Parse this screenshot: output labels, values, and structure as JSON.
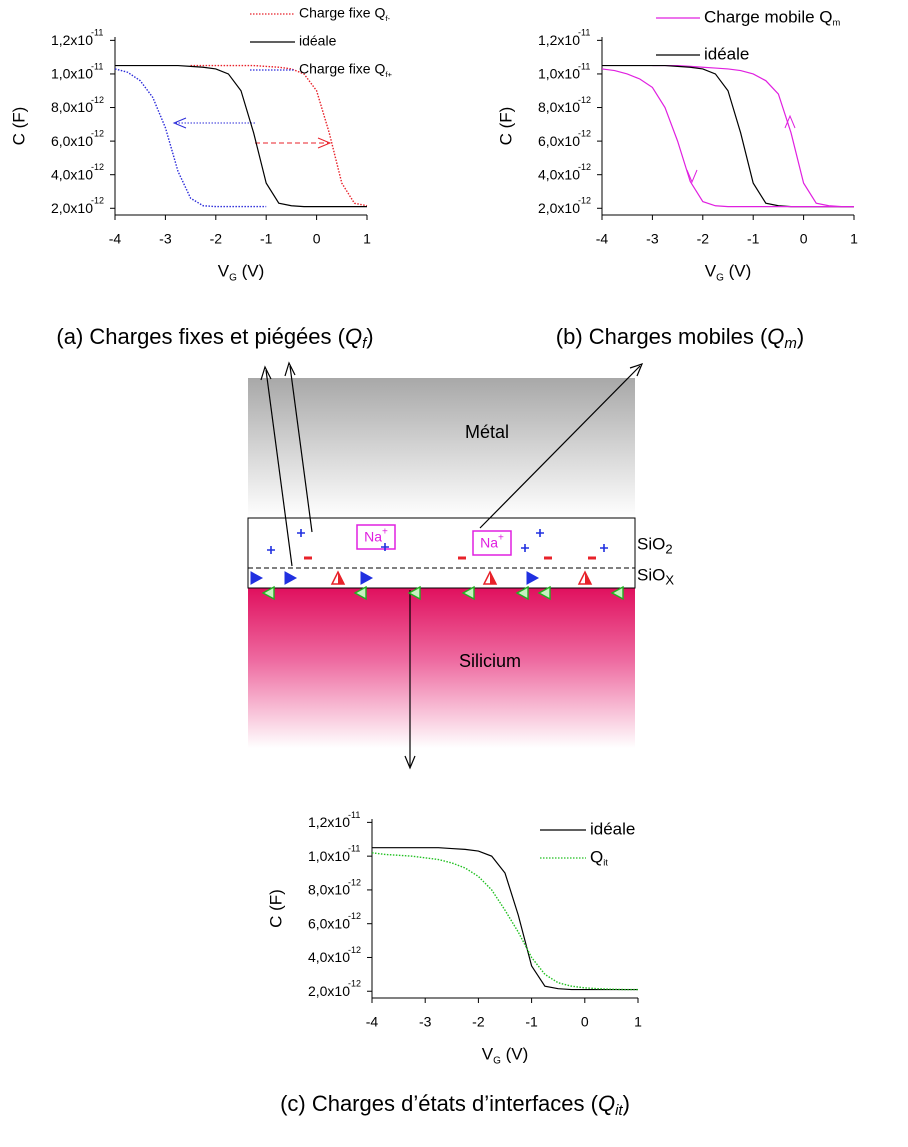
{
  "chart_data": [
    {
      "type": "line",
      "x": [
        -4,
        -3.75,
        -3.5,
        -3.25,
        -3,
        -2.75,
        -2.5,
        -2.25,
        -2,
        -1.75,
        -1.5,
        -1.25,
        -1,
        -0.75,
        -0.5,
        -0.25,
        0,
        0.25,
        0.5,
        0.75,
        1
      ],
      "xlim": [
        -4,
        1
      ],
      "xticks": [
        -4,
        -3,
        -2,
        -1,
        0,
        1
      ],
      "ylim": [
        1.6e-12,
        1.22e-11
      ],
      "yticks": [
        {
          "value": 2e-12,
          "label": "2,0x10",
          "exponent": "-12"
        },
        {
          "value": 4e-12,
          "label": "4,0x10",
          "exponent": "-12"
        },
        {
          "value": 6e-12,
          "label": "6,0x10",
          "exponent": "-12"
        },
        {
          "value": 8e-12,
          "label": "8,0x10",
          "exponent": "-12"
        },
        {
          "value": 1e-11,
          "label": "1,0x10",
          "exponent": "-11"
        },
        {
          "value": 1.2e-11,
          "label": "1,2x10",
          "exponent": "-11"
        }
      ],
      "ylabel": "C (F)",
      "xlabel": {
        "symbol": "V",
        "sub": "G",
        "unit": " (V)"
      },
      "series": [
        {
          "name": "Charge fixe Q",
          "name_sub": "f-",
          "color": "#e8222a",
          "style": "dotted",
          "values": [
            null,
            null,
            null,
            null,
            null,
            null,
            1.05e-11,
            1.05e-11,
            1.05e-11,
            1.05e-11,
            1.05e-11,
            1.05e-11,
            1.045e-11,
            1.04e-11,
            1.03e-11,
            1e-11,
            9e-12,
            6.5e-12,
            3.5e-12,
            2.3e-12,
            2.15e-12
          ]
        },
        {
          "name": "idéale",
          "color": "#000000",
          "style": "solid",
          "values": [
            1.05e-11,
            1.05e-11,
            1.05e-11,
            1.05e-11,
            1.05e-11,
            1.05e-11,
            1.045e-11,
            1.04e-11,
            1.03e-11,
            1e-11,
            9e-12,
            6.5e-12,
            3.5e-12,
            2.3e-12,
            2.15e-12,
            2.1e-12,
            2.1e-12,
            2.1e-12,
            2.1e-12,
            2.1e-12,
            2.1e-12
          ]
        },
        {
          "name": "Charge fixe Q",
          "name_sub": "f+",
          "color": "#2b2bd9",
          "style": "dotted",
          "values": [
            1.03e-11,
            1.01e-11,
            9.6e-12,
            8.6e-12,
            6.8e-12,
            4.2e-12,
            2.6e-12,
            2.15e-12,
            2.1e-12,
            2.1e-12,
            2.1e-12,
            2.1e-12,
            2.1e-12,
            null,
            null,
            null,
            null,
            null,
            null,
            null,
            null
          ]
        }
      ]
    },
    {
      "type": "line",
      "x": [
        -4,
        -3.75,
        -3.5,
        -3.25,
        -3,
        -2.75,
        -2.5,
        -2.25,
        -2,
        -1.75,
        -1.5,
        -1.25,
        -1,
        -0.75,
        -0.5,
        -0.25,
        0,
        0.25,
        0.5,
        0.75,
        1
      ],
      "xlim": [
        -4,
        1
      ],
      "xticks": [
        -4,
        -3,
        -2,
        -1,
        0,
        1
      ],
      "ylim": [
        1.6e-12,
        1.22e-11
      ],
      "yticks": [
        {
          "value": 2e-12,
          "label": "2,0x10",
          "exponent": "-12"
        },
        {
          "value": 4e-12,
          "label": "4,0x10",
          "exponent": "-12"
        },
        {
          "value": 6e-12,
          "label": "6,0x10",
          "exponent": "-12"
        },
        {
          "value": 8e-12,
          "label": "8,0x10",
          "exponent": "-12"
        },
        {
          "value": 1e-11,
          "label": "1,0x10",
          "exponent": "-11"
        },
        {
          "value": 1.2e-11,
          "label": "1,2x10",
          "exponent": "-11"
        }
      ],
      "ylabel": "C (F)",
      "xlabel": {
        "symbol": "V",
        "sub": "G",
        "unit": " (V)"
      },
      "series": [
        {
          "name": "Charge mobile Q",
          "name_sub": "m",
          "color": "#e020e0",
          "style": "solid",
          "values": [
            null,
            null,
            null,
            null,
            1.05e-11,
            1.05e-11,
            1.05e-11,
            1.045e-11,
            1.04e-11,
            1.035e-11,
            1.03e-11,
            1.02e-11,
            1e-11,
            9.6e-12,
            8.8e-12,
            6.5e-12,
            3.5e-12,
            2.3e-12,
            2.15e-12,
            2.1e-12,
            2.1e-12
          ]
        },
        {
          "name": "idéale",
          "color": "#000000",
          "style": "solid",
          "values": [
            1.05e-11,
            1.05e-11,
            1.05e-11,
            1.05e-11,
            1.05e-11,
            1.05e-11,
            1.045e-11,
            1.04e-11,
            1.03e-11,
            1e-11,
            9e-12,
            6.5e-12,
            3.5e-12,
            2.3e-12,
            2.15e-12,
            2.1e-12,
            2.1e-12,
            2.1e-12,
            2.1e-12,
            2.1e-12,
            2.1e-12
          ]
        },
        {
          "color": "#e020e0",
          "style": "solid",
          "values": [
            1.03e-11,
            1.02e-11,
            1e-11,
            9.7e-12,
            9.2e-12,
            8e-12,
            6e-12,
            3.6e-12,
            2.4e-12,
            2.15e-12,
            2.1e-12,
            2.1e-12,
            2.1e-12,
            2.1e-12,
            2.1e-12,
            2.1e-12,
            2.1e-12,
            2.1e-12,
            2.1e-12,
            2.1e-12,
            2.1e-12
          ]
        }
      ]
    },
    {
      "type": "line",
      "x": [
        -4,
        -3.75,
        -3.5,
        -3.25,
        -3,
        -2.75,
        -2.5,
        -2.25,
        -2,
        -1.75,
        -1.5,
        -1.25,
        -1,
        -0.75,
        -0.5,
        -0.25,
        0,
        0.25,
        0.5,
        0.75,
        1
      ],
      "xlim": [
        -4,
        1
      ],
      "xticks": [
        -4,
        -3,
        -2,
        -1,
        0,
        1
      ],
      "ylim": [
        1.6e-12,
        1.22e-11
      ],
      "yticks": [
        {
          "value": 2e-12,
          "label": "2,0x10",
          "exponent": "-12"
        },
        {
          "value": 4e-12,
          "label": "4,0x10",
          "exponent": "-12"
        },
        {
          "value": 6e-12,
          "label": "6,0x10",
          "exponent": "-12"
        },
        {
          "value": 8e-12,
          "label": "8,0x10",
          "exponent": "-12"
        },
        {
          "value": 1e-11,
          "label": "1,0x10",
          "exponent": "-11"
        },
        {
          "value": 1.2e-11,
          "label": "1,2x10",
          "exponent": "-11"
        }
      ],
      "ylabel": "C (F)",
      "xlabel": {
        "symbol": "V",
        "sub": "G",
        "unit": " (V)"
      },
      "series": [
        {
          "name": "idéale",
          "color": "#000000",
          "style": "solid",
          "values": [
            1.05e-11,
            1.05e-11,
            1.05e-11,
            1.05e-11,
            1.05e-11,
            1.05e-11,
            1.045e-11,
            1.04e-11,
            1.03e-11,
            1e-11,
            9e-12,
            6.5e-12,
            3.5e-12,
            2.3e-12,
            2.15e-12,
            2.1e-12,
            2.1e-12,
            2.1e-12,
            2.1e-12,
            2.1e-12,
            2.1e-12
          ]
        },
        {
          "name": "Q",
          "name_sub": "it",
          "color": "#20c020",
          "style": "dotted",
          "values": [
            1.02e-11,
            1.01e-11,
            1.005e-11,
            1e-11,
            9.9e-12,
            9.8e-12,
            9.6e-12,
            9.3e-12,
            8.8e-12,
            8e-12,
            6.8e-12,
            5.5e-12,
            4e-12,
            3e-12,
            2.5e-12,
            2.3e-12,
            2.2e-12,
            2.15e-12,
            2.12e-12,
            2.1e-12,
            2.1e-12
          ]
        }
      ]
    }
  ],
  "captions": [
    {
      "text": "(a) Charges fixes et piégées (",
      "symbol": "Q",
      "sub": "f",
      "close": ")"
    },
    {
      "text": "(b) Charges mobiles (",
      "symbol": "Q",
      "sub": "m",
      "close": ")"
    },
    {
      "text": "(c) Charges d’états d’interfaces (",
      "symbol": "Q",
      "sub": "it",
      "close": ")"
    }
  ],
  "diagram": {
    "metal": "Métal",
    "oxide": {
      "text": "SiO",
      "sub": "2"
    },
    "interlayer": {
      "text": "SiO",
      "sub": "X"
    },
    "silicon": "Silicium",
    "ions": [
      {
        "text": "Na",
        "sup": "+"
      },
      {
        "text": "Na",
        "sup": "+"
      }
    ]
  }
}
